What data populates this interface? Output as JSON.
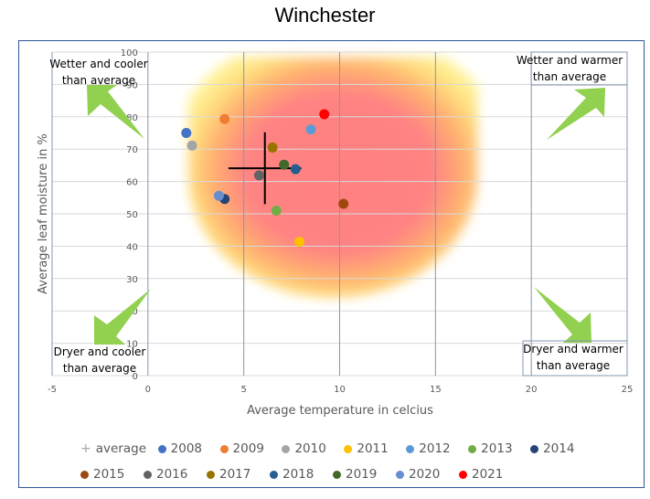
{
  "chart_data": {
    "type": "scatter",
    "title": "Winchester",
    "xlabel": "Average temperature in celcius",
    "ylabel": "Average leaf moisture in %",
    "xlim": [
      -5,
      25
    ],
    "ylim": [
      0,
      100
    ],
    "x_ticks": [
      -5,
      0,
      5,
      10,
      15,
      20,
      25
    ],
    "y_ticks": [
      0,
      10,
      20,
      30,
      40,
      50,
      60,
      70,
      80,
      90,
      100
    ],
    "grid": true,
    "legend_position": "bottom",
    "series": [
      {
        "name": "2008",
        "color": "#4472C4",
        "x": 2.0,
        "y": 75.0
      },
      {
        "name": "2009",
        "color": "#ED7D31",
        "x": 4.0,
        "y": 79.3
      },
      {
        "name": "2010",
        "color": "#A5A5A5",
        "x": 2.3,
        "y": 71.1
      },
      {
        "name": "2011",
        "color": "#FFC000",
        "x": 7.9,
        "y": 41.4
      },
      {
        "name": "2012",
        "color": "#5B9BD5",
        "x": 8.5,
        "y": 76.1
      },
      {
        "name": "2013",
        "color": "#70AD47",
        "x": 6.7,
        "y": 51.0
      },
      {
        "name": "2014",
        "color": "#264478",
        "x": 4.0,
        "y": 54.6
      },
      {
        "name": "2015",
        "color": "#9E480E",
        "x": 10.2,
        "y": 53.1
      },
      {
        "name": "2016",
        "color": "#636363",
        "x": 5.8,
        "y": 61.9
      },
      {
        "name": "2017",
        "color": "#997300",
        "x": 6.5,
        "y": 70.5
      },
      {
        "name": "2018",
        "color": "#255E91",
        "x": 7.7,
        "y": 63.8
      },
      {
        "name": "2019",
        "color": "#43682B",
        "x": 7.1,
        "y": 65.2
      },
      {
        "name": "2020",
        "color": "#698ED0",
        "x": 3.7,
        "y": 55.6
      },
      {
        "name": "2021",
        "color": "#FF0000",
        "x": 9.2,
        "y": 80.8
      }
    ],
    "average": {
      "name": "average",
      "x": 6.1,
      "y": 64.1,
      "x_error": 1.9,
      "y_error": 11.1
    },
    "annotations": [
      {
        "id": "wetter-cooler",
        "text": [
          "Wetter and cooler",
          "than average"
        ],
        "direction": "up-left"
      },
      {
        "id": "wetter-warmer",
        "text": [
          "Wetter and warmer",
          "than average"
        ],
        "direction": "up-right"
      },
      {
        "id": "dryer-cooler",
        "text": [
          "Dryer and cooler",
          "than average"
        ],
        "direction": "down-left"
      },
      {
        "id": "dryer-warmer",
        "text": [
          "Dryer and warmer",
          "than average"
        ],
        "direction": "down-right"
      }
    ],
    "background_heatmap": {
      "description": "Yellow-to-red radial gradient centred near the average point",
      "outer_color": "#FFF59D",
      "mid_color": "#FFD966",
      "core_color": "#FF8080"
    }
  },
  "legend": {
    "rows": [
      [
        "average",
        "2008",
        "2009",
        "2010",
        "2011",
        "2012",
        "2013",
        "2014"
      ],
      [
        "2015",
        "2016",
        "2017",
        "2018",
        "2019",
        "2020",
        "2021"
      ]
    ]
  },
  "colors": {
    "frame_border": "#2F5597",
    "arrow_fill": "#92D050",
    "grid_vertical": "#8497B0",
    "grid_horizontal": "#D9D9D9"
  }
}
